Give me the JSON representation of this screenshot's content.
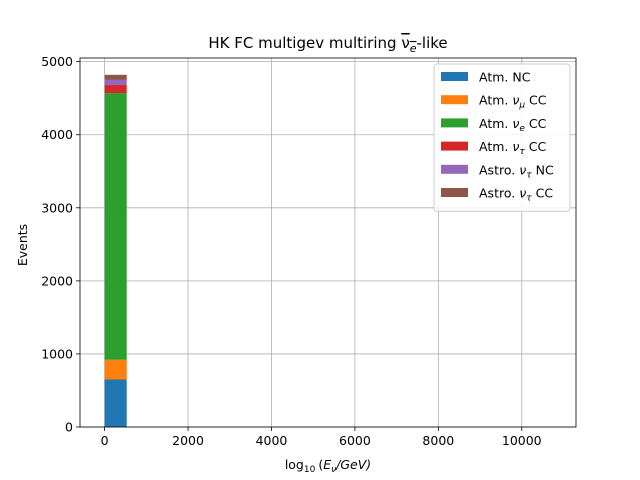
{
  "chart_data": {
    "type": "bar",
    "stacked": true,
    "title": "HK FC multigev multiring νe-like",
    "title_main": "HK FC multigev multiring ",
    "title_nu": "ν",
    "title_sub": "e",
    "title_suffix": "-like",
    "xlabel": "log10 (Eν/GeV)",
    "xlabel_parts": {
      "pre": "log",
      "sub10": "10",
      "open": "(",
      "E": "E",
      "subnu": "ν",
      "rest": "/GeV)"
    },
    "ylabel": "Events",
    "xlim": [
      -590,
      11300
    ],
    "ylim": [
      0,
      5050
    ],
    "xticks": [
      0,
      2000,
      4000,
      6000,
      8000,
      10000
    ],
    "yticks": [
      0,
      1000,
      2000,
      3000,
      4000,
      5000
    ],
    "grid": true,
    "legend_position": "top-right",
    "bin": {
      "x_start": 0,
      "x_end": 530
    },
    "series": [
      {
        "name": "Atm. NC",
        "name_main": "Atm. NC",
        "name_sym": "",
        "name_sub": "",
        "name_suffix": "",
        "color": "#1f77b4",
        "values": [
          650
        ]
      },
      {
        "name": "Atm. νμ CC",
        "name_main": "Atm. ",
        "name_sym": "ν",
        "name_sub": "μ",
        "name_suffix": " CC",
        "color": "#ff7f0e",
        "values": [
          270
        ]
      },
      {
        "name": "Atm. νe CC",
        "name_main": "Atm. ",
        "name_sym": "ν",
        "name_sub": "e",
        "name_suffix": " CC",
        "color": "#2ca02c",
        "values": [
          3650
        ]
      },
      {
        "name": "Atm. ντ CC",
        "name_main": "Atm. ",
        "name_sym": "ν",
        "name_sub": "τ",
        "name_suffix": " CC",
        "color": "#d62728",
        "values": [
          110
        ]
      },
      {
        "name": "Astro. ντ NC",
        "name_main": "Astro. ",
        "name_sym": "ν",
        "name_sub": "τ",
        "name_suffix": " NC",
        "color": "#9467bd",
        "values": [
          70
        ]
      },
      {
        "name": "Astro. ντ CC",
        "name_main": "Astro. ",
        "name_sym": "ν",
        "name_sub": "τ",
        "name_suffix": " CC",
        "color": "#8c564b",
        "values": [
          70
        ]
      }
    ]
  }
}
